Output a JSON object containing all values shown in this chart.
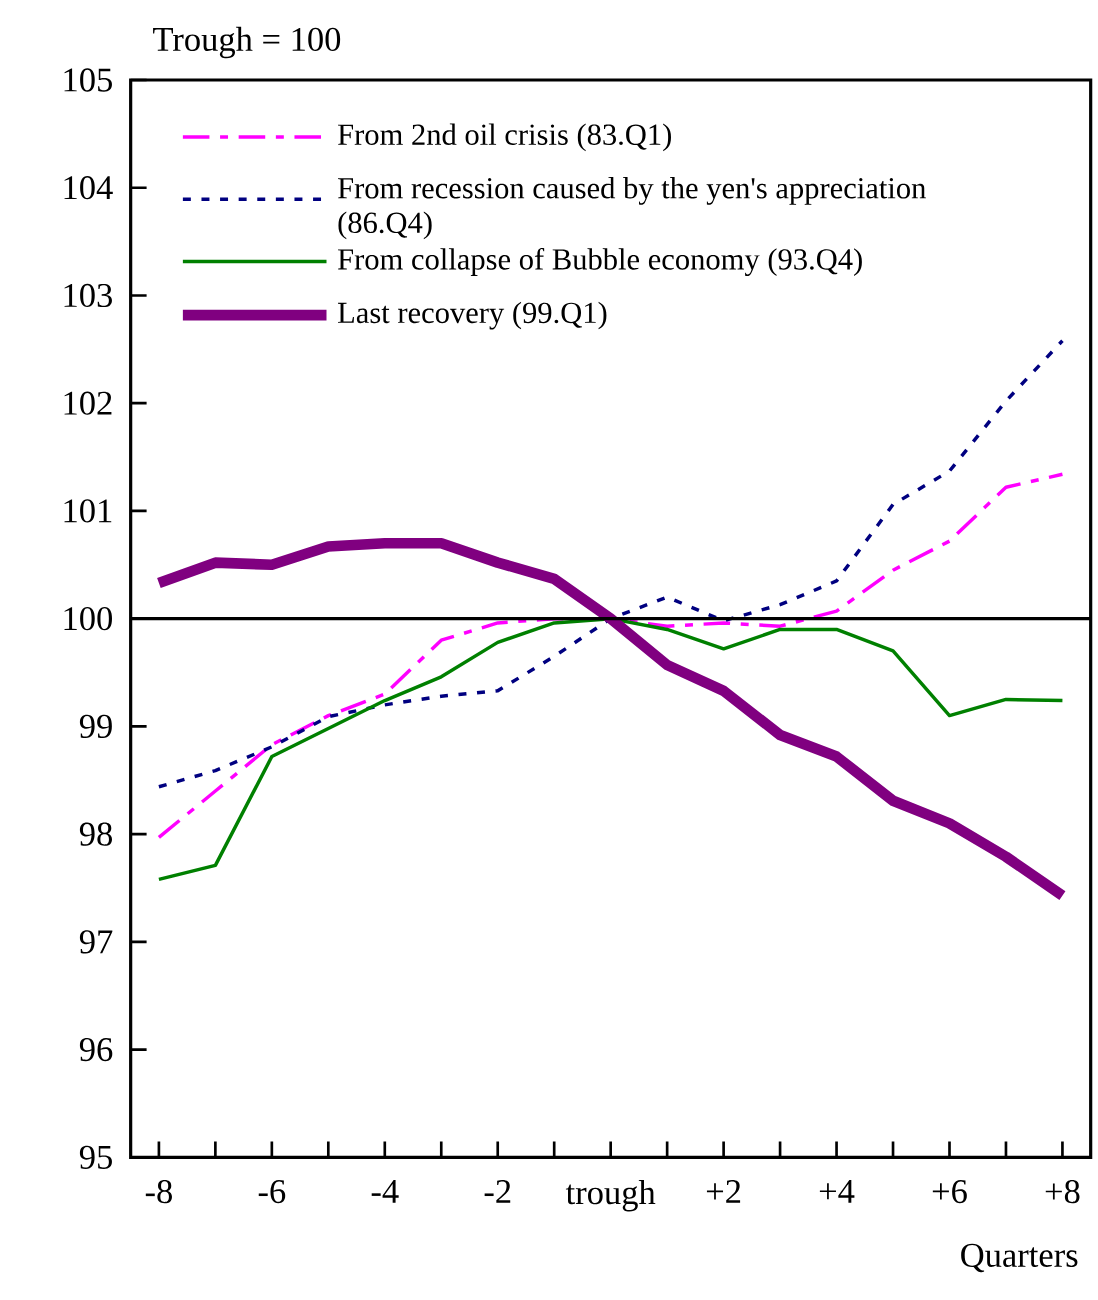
{
  "chart_data": {
    "type": "line",
    "ylabel": "Trough = 100",
    "xlabel": "Quarters",
    "categories": [
      "-8",
      null,
      "-6",
      null,
      "-4",
      null,
      "-2",
      null,
      "trough",
      null,
      "+2",
      null,
      "+4",
      null,
      "+6",
      null,
      "+8"
    ],
    "ylim": [
      95,
      105
    ],
    "yticks": [
      95,
      96,
      97,
      98,
      99,
      100,
      101,
      102,
      103,
      104,
      105
    ],
    "ref_lines": [
      {
        "axis": "y",
        "value": 100,
        "color": "#000000"
      }
    ],
    "legend": "top left",
    "grid": false,
    "marker": "none",
    "series": [
      {
        "name": "From 2nd oil crisis (83.Q1)",
        "color": "#ff00ff",
        "line_style": "dashed",
        "values": [
          97.97,
          98.4,
          98.83,
          99.1,
          99.3,
          99.8,
          99.96,
          100,
          100,
          99.93,
          99.96,
          99.93,
          100.07,
          100.45,
          100.72,
          101.22,
          101.34
        ]
      },
      {
        "name": "From recession caused by the yen's appreciation (86.Q4)",
        "color": "#000080",
        "line_style": "dotted",
        "values": [
          98.44,
          98.59,
          98.81,
          99.09,
          99.2,
          99.28,
          99.33,
          99.65,
          100,
          100.2,
          99.98,
          100.13,
          100.35,
          101.06,
          101.37,
          102.02,
          102.58
        ]
      },
      {
        "name": "From collapse of Bubble economy (93.Q4)",
        "color": "#008000",
        "line_style": "solid",
        "values": [
          97.58,
          97.71,
          98.72,
          98.98,
          99.24,
          99.46,
          99.78,
          99.96,
          100,
          99.9,
          99.72,
          99.9,
          99.9,
          99.7,
          99.1,
          99.25,
          99.24
        ]
      },
      {
        "name": "Last recovery (99.Q1)",
        "color": "#800080",
        "line_style": "solid",
        "values": [
          100.33,
          100.52,
          100.5,
          100.67,
          100.7,
          100.7,
          100.52,
          100.37,
          100,
          99.57,
          99.33,
          98.92,
          98.72,
          98.31,
          98.1,
          97.79,
          97.43
        ]
      }
    ]
  }
}
